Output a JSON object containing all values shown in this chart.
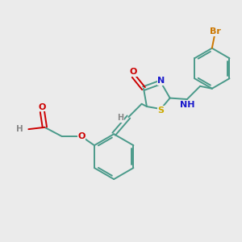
{
  "bg_color": "#ebebeb",
  "atom_colors": {
    "C": "#4a9a8a",
    "N": "#1a1acc",
    "O": "#cc0000",
    "S": "#ccaa00",
    "Br": "#cc7700",
    "H": "#888888"
  },
  "bond_color": "#4a9a8a",
  "font_size": 8.0,
  "line_width": 1.4
}
